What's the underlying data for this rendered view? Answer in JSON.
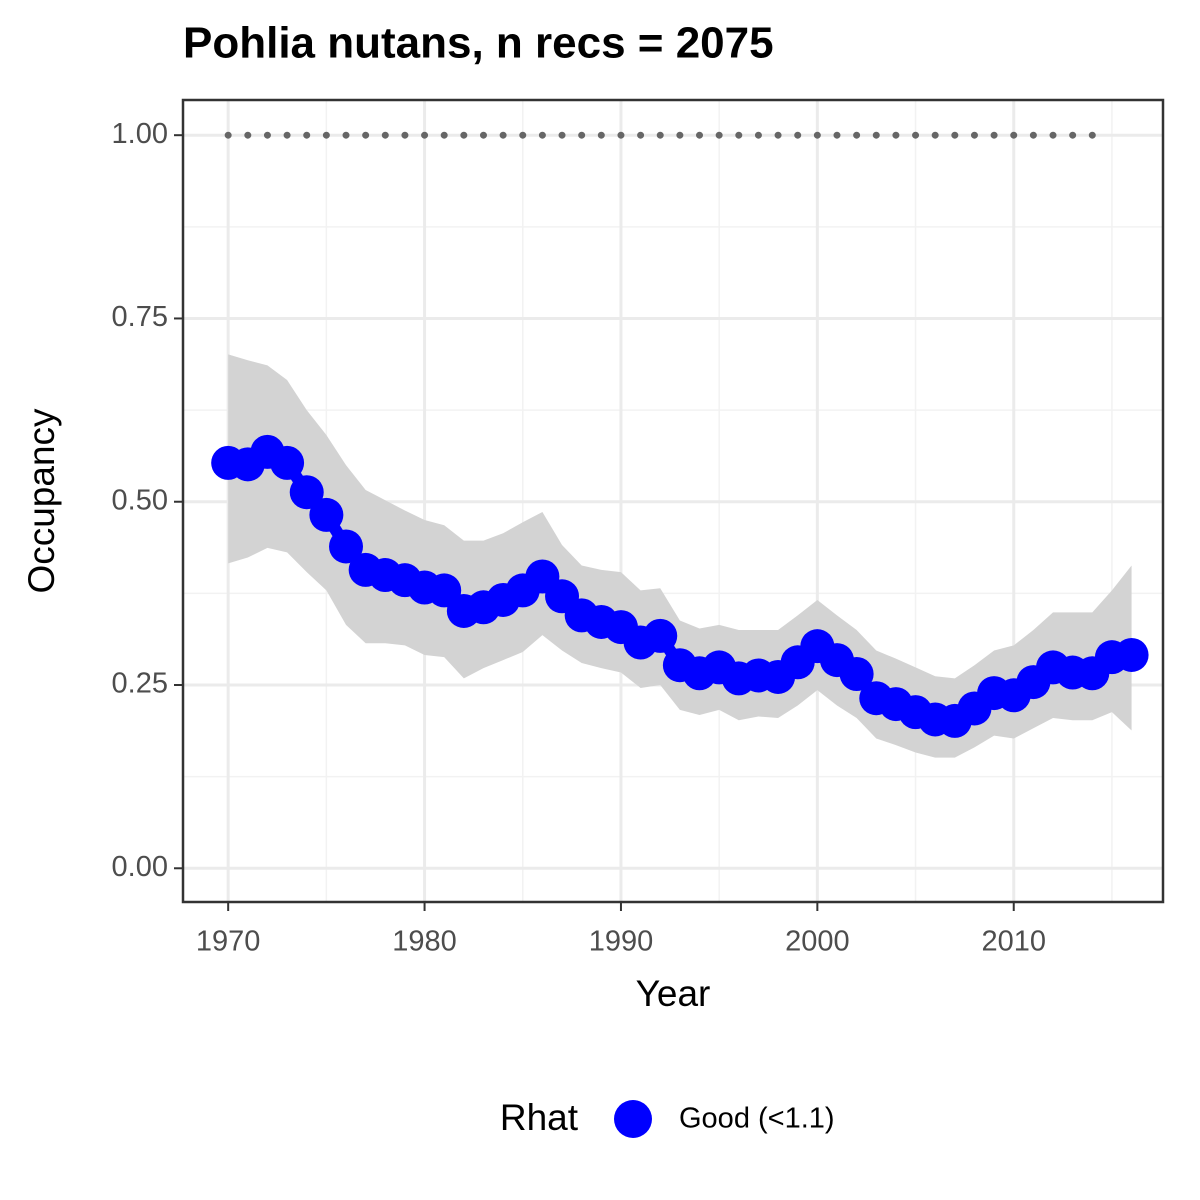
{
  "chart_data": {
    "type": "line",
    "title": "Pohlia nutans, n recs = 2075",
    "x_label": "Year",
    "y_label": "Occupancy",
    "legend_title": "Rhat",
    "legend_position": "bottom",
    "x": [
      1970,
      1971,
      1972,
      1973,
      1974,
      1975,
      1976,
      1977,
      1978,
      1979,
      1980,
      1981,
      1982,
      1983,
      1984,
      1985,
      1986,
      1987,
      1988,
      1989,
      1990,
      1991,
      1992,
      1993,
      1994,
      1995,
      1996,
      1997,
      1998,
      1999,
      2000,
      2001,
      2002,
      2003,
      2004,
      2005,
      2006,
      2007,
      2008,
      2009,
      2010,
      2011,
      2012,
      2013,
      2014,
      2015,
      2016
    ],
    "series": [
      {
        "name": "Good (<1.1)",
        "color": "#0000ff",
        "band_color": "#d3d3d3",
        "values": [
          0.553,
          0.551,
          0.568,
          0.553,
          0.513,
          0.482,
          0.439,
          0.407,
          0.4,
          0.393,
          0.383,
          0.379,
          0.351,
          0.356,
          0.366,
          0.379,
          0.398,
          0.371,
          0.345,
          0.336,
          0.329,
          0.308,
          0.317,
          0.277,
          0.266,
          0.274,
          0.259,
          0.263,
          0.261,
          0.281,
          0.303,
          0.284,
          0.265,
          0.232,
          0.224,
          0.213,
          0.203,
          0.201,
          0.218,
          0.239,
          0.236,
          0.254,
          0.274,
          0.267,
          0.266,
          0.288,
          0.291
        ],
        "upper": [
          0.701,
          0.693,
          0.686,
          0.666,
          0.625,
          0.591,
          0.55,
          0.516,
          0.502,
          0.488,
          0.475,
          0.468,
          0.447,
          0.447,
          0.457,
          0.472,
          0.486,
          0.441,
          0.413,
          0.407,
          0.404,
          0.379,
          0.382,
          0.338,
          0.327,
          0.332,
          0.325,
          0.325,
          0.325,
          0.345,
          0.366,
          0.345,
          0.325,
          0.297,
          0.286,
          0.274,
          0.262,
          0.259,
          0.277,
          0.297,
          0.304,
          0.325,
          0.349,
          0.349,
          0.349,
          0.379,
          0.413
        ],
        "lower": [
          0.416,
          0.424,
          0.437,
          0.431,
          0.404,
          0.379,
          0.332,
          0.307,
          0.307,
          0.304,
          0.291,
          0.288,
          0.259,
          0.273,
          0.284,
          0.295,
          0.318,
          0.297,
          0.28,
          0.273,
          0.267,
          0.246,
          0.25,
          0.216,
          0.209,
          0.216,
          0.202,
          0.207,
          0.205,
          0.222,
          0.243,
          0.222,
          0.205,
          0.177,
          0.168,
          0.158,
          0.151,
          0.151,
          0.165,
          0.181,
          0.177,
          0.191,
          0.205,
          0.202,
          0.202,
          0.213,
          0.188
        ]
      }
    ],
    "reference_line": {
      "y": 1,
      "x": [
        1970,
        2015
      ],
      "color": "#666666"
    },
    "xlim": [
      1967.7,
      2017.6
    ],
    "xticks": [
      1970,
      1980,
      1990,
      2000,
      2010
    ],
    "ylim": [
      -0.046,
      1.048
    ],
    "yticks": [
      {
        "value": 0,
        "label": "0.00"
      },
      {
        "value": 0.25,
        "label": "0.25"
      },
      {
        "value": 0.5,
        "label": "0.50"
      },
      {
        "value": 0.75,
        "label": "0.75"
      },
      {
        "value": 1,
        "label": "1.00"
      }
    ],
    "grid": true
  }
}
